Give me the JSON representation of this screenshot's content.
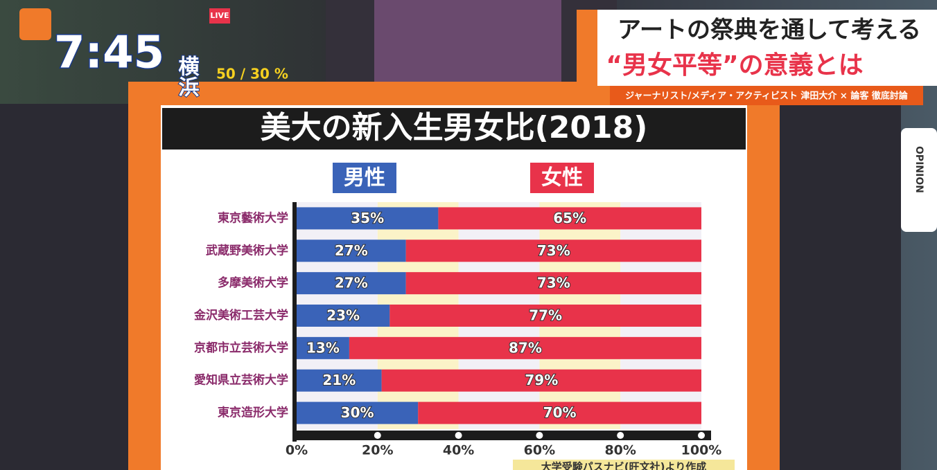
{
  "overlay": {
    "time": "7:45",
    "location": "横浜",
    "precipitation": "50 / 30 %",
    "live": "LIVE",
    "headline": [
      "アートの祭典を通して考える",
      "“男女平等”の意義とは"
    ],
    "subline": "ジャーナリスト/メディア・アクティビスト 津田大介 × 論客 徹底討論",
    "tab": "OPINION"
  },
  "chart_data": {
    "type": "stacked-bar-horizontal",
    "title": "美大の新入生男女比(2018)",
    "categories": [
      "東京藝術大学",
      "武蔵野美術大学",
      "多摩美術大学",
      "金沢美術工芸大学",
      "京都市立芸術大学",
      "愛知県立芸術大学",
      "東京造形大学"
    ],
    "series": [
      {
        "name": "男性",
        "color": "#3a63b8",
        "values": [
          35,
          27,
          27,
          23,
          13,
          21,
          30
        ],
        "value_labels": [
          "35%",
          "27%",
          "27%",
          "23%",
          "13%",
          "21%",
          "30%"
        ]
      },
      {
        "name": "女性",
        "color": "#e8334a",
        "values": [
          65,
          73,
          73,
          77,
          87,
          79,
          70
        ],
        "value_labels": [
          "65%",
          "73%",
          "73%",
          "77%",
          "87%",
          "79%",
          "70%"
        ]
      }
    ],
    "xlim": [
      0,
      100
    ],
    "xticks": [
      {
        "value": 0,
        "label": "0%"
      },
      {
        "value": 20,
        "label": "20%"
      },
      {
        "value": 40,
        "label": "40%"
      },
      {
        "value": 60,
        "label": "60%"
      },
      {
        "value": 80,
        "label": "80%"
      },
      {
        "value": 100,
        "label": "100%"
      }
    ],
    "source": "大学受験パスナビ(旺文社)より作成"
  }
}
